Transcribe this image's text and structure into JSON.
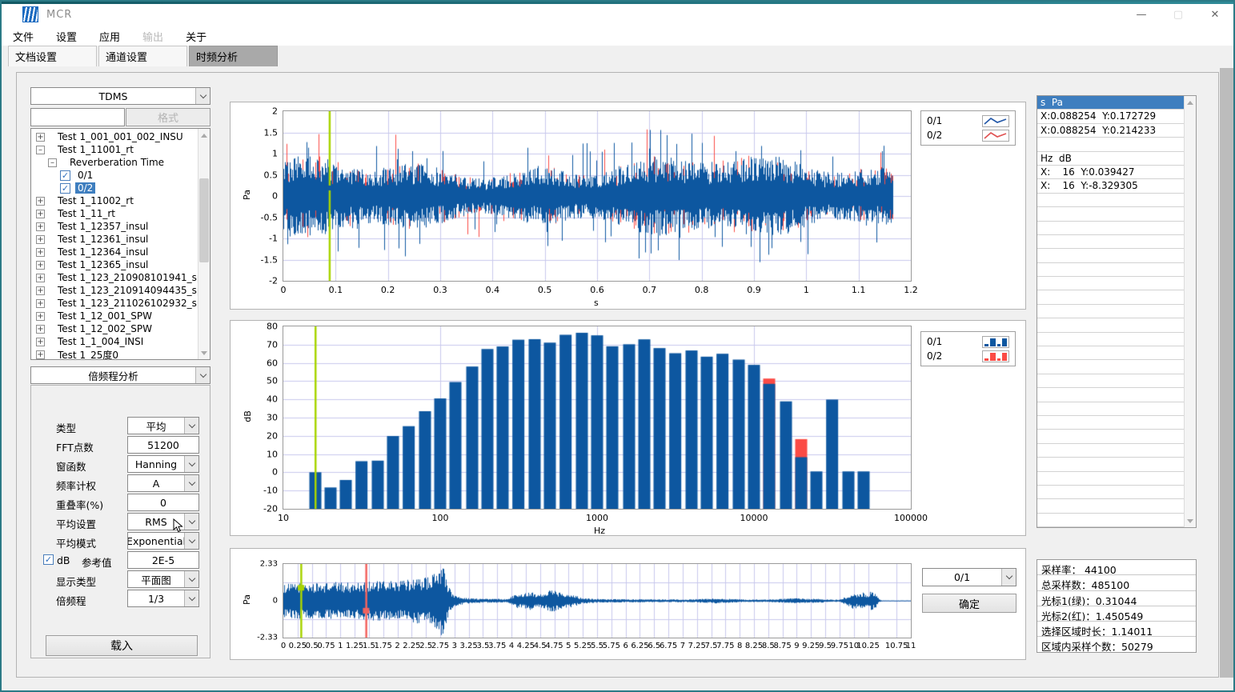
{
  "window": {
    "title": "MCR",
    "buttons": {
      "minimize": "—",
      "maximize": "▢",
      "close": "✕"
    }
  },
  "menu": {
    "items": [
      {
        "id": "file",
        "label": "文件",
        "enabled": true
      },
      {
        "id": "settings",
        "label": "设置",
        "enabled": true
      },
      {
        "id": "application",
        "label": "应用",
        "enabled": true
      },
      {
        "id": "output",
        "label": "输出",
        "enabled": false
      },
      {
        "id": "about",
        "label": "关于",
        "enabled": true
      }
    ]
  },
  "tabs": [
    {
      "id": "document-settings",
      "label": "文档设置",
      "active": false
    },
    {
      "id": "channel-settings",
      "label": "通道设置",
      "active": false
    },
    {
      "id": "time-frequency",
      "label": "时频分析",
      "active": true
    }
  ],
  "file_panel": {
    "format_select": "TDMS",
    "filter_input": "",
    "format_button": "格式",
    "tree": [
      {
        "label": "Test 1_001_001_002_INSU",
        "level": 0,
        "expander": "+"
      },
      {
        "label": "Test 1_11001_rt",
        "level": 0,
        "expander": "-"
      },
      {
        "label": "Reverberation Time",
        "level": 1,
        "expander": "-"
      },
      {
        "label": "0/1",
        "level": 2,
        "checkbox": true,
        "checked": true
      },
      {
        "label": "0/2",
        "level": 2,
        "checkbox": true,
        "checked": true,
        "selected": true
      },
      {
        "label": "Test 1_11002_rt",
        "level": 0,
        "expander": "+"
      },
      {
        "label": "Test 1_11_rt",
        "level": 0,
        "expander": "+"
      },
      {
        "label": "Test 1_12357_insul",
        "level": 0,
        "expander": "+"
      },
      {
        "label": "Test 1_12361_insul",
        "level": 0,
        "expander": "+"
      },
      {
        "label": "Test 1_12364_insul",
        "level": 0,
        "expander": "+"
      },
      {
        "label": "Test 1_12365_insul",
        "level": 0,
        "expander": "+"
      },
      {
        "label": "Test 1_123_210908101941_spw",
        "level": 0,
        "expander": "+"
      },
      {
        "label": "Test 1_123_210914094435_spw",
        "level": 0,
        "expander": "+"
      },
      {
        "label": "Test 1_123_211026102932_spw",
        "level": 0,
        "expander": "+"
      },
      {
        "label": "Test 1_12_001_SPW",
        "level": 0,
        "expander": "+"
      },
      {
        "label": "Test 1_12_002_SPW",
        "level": 0,
        "expander": "+"
      },
      {
        "label": "Test 1_1_004_INSI",
        "level": 0,
        "expander": "+"
      },
      {
        "label": "Test 1_25度0",
        "level": 0,
        "expander": "+"
      }
    ]
  },
  "analysis_panel": {
    "title_select": "倍频程分析",
    "fields": [
      {
        "id": "type",
        "label": "类型",
        "type": "select",
        "value": "平均"
      },
      {
        "id": "fft-points",
        "label": "FFT点数",
        "type": "input",
        "value": "51200"
      },
      {
        "id": "window-function",
        "label": "窗函数",
        "type": "select",
        "value": "Hanning"
      },
      {
        "id": "frequency-weighting",
        "label": "频率计权",
        "type": "select",
        "value": "A"
      },
      {
        "id": "overlap",
        "label": "重叠率(%)",
        "type": "input",
        "value": "0"
      },
      {
        "id": "average-setting",
        "label": "平均设置",
        "type": "select",
        "value": "RMS"
      },
      {
        "id": "average-mode",
        "label": "平均模式",
        "type": "select",
        "value": "Exponential"
      },
      {
        "id": "db-reference",
        "label": "参考值",
        "type": "db_ref",
        "checkbox_label": "dB",
        "checked": true,
        "value": "2E-5"
      },
      {
        "id": "display-type",
        "label": "显示类型",
        "type": "select",
        "value": "平面图"
      },
      {
        "id": "octave",
        "label": "倍频程",
        "type": "select",
        "value": "1/3"
      }
    ],
    "load_button": "载入"
  },
  "readout_panel": {
    "rows": [
      "s  Pa",
      "X:0.088254  Y:0.172729",
      "X:0.088254  Y:0.214233",
      "",
      "Hz  dB",
      "X:    16  Y:0.039427",
      "X:    16  Y:-8.329305"
    ]
  },
  "stats_panel": {
    "rows": [
      "采样率： 44100",
      "总采样数：485100",
      "光标1(绿)：0.31044",
      "光标2(红)：1.450549",
      "选择区域时长：1.14011",
      "区域内采样个数：50279"
    ]
  },
  "overview_controls": {
    "channel_select": "0/1",
    "confirm_button": "确定"
  },
  "colors": {
    "signal_blue": "#0d57a0",
    "signal_red": "#fb4b45",
    "legend_red_line": "#e05353",
    "cursor_green": "#a8d400",
    "cursor_red": "#f2635f",
    "grid": "#c9c9ec",
    "selected_row": "#3e7ebf",
    "frame_teal": "#2b7a86"
  },
  "chart_data": [
    {
      "id": "time",
      "type": "line",
      "title": "",
      "xlabel": "s",
      "ylabel": "Pa",
      "xlim": [
        0,
        1.2
      ],
      "ylim": [
        -2,
        2
      ],
      "xticks": [
        0,
        0.1,
        0.2,
        0.3,
        0.4,
        0.5,
        0.6,
        0.7,
        0.8,
        0.9,
        1,
        1.1,
        1.2
      ],
      "yticks": [
        2,
        1.5,
        1,
        0.5,
        0,
        -0.5,
        -1,
        -1.5,
        -2
      ],
      "grid": true,
      "series": [
        {
          "name": "0/1",
          "color": "#0d57a0",
          "description": "broadband noise, duration 1.165 s, typical amplitude ±0.9 Pa, peaks ±1.55 Pa"
        },
        {
          "name": "0/2",
          "color": "#e05353",
          "description": "second channel, mostly hidden behind 0/1"
        }
      ],
      "cursors": [
        {
          "x": 0.088254,
          "color": "#a8d400"
        }
      ],
      "legend": [
        {
          "label": "0/1",
          "glyph": "line",
          "color": "#2458a8"
        },
        {
          "label": "0/2",
          "glyph": "line",
          "color": "#e05353"
        }
      ],
      "legend_position": "top-right"
    },
    {
      "id": "spectrum",
      "type": "bar",
      "title": "",
      "xlabel": "Hz",
      "ylabel": "dB",
      "xscale": "log",
      "xlim": [
        10,
        100000
      ],
      "ylim": [
        -20,
        80
      ],
      "xticks": [
        10,
        100,
        1000,
        10000,
        100000
      ],
      "yticks": [
        80,
        70,
        60,
        50,
        40,
        30,
        20,
        10,
        0,
        -10,
        -20
      ],
      "grid": true,
      "categories": [
        16,
        20,
        25,
        31.5,
        40,
        50,
        63,
        80,
        100,
        125,
        160,
        200,
        250,
        315,
        400,
        500,
        630,
        800,
        1000,
        1250,
        1600,
        2000,
        2500,
        3150,
        4000,
        5000,
        6300,
        8000,
        10000,
        12500,
        16000,
        20000,
        25000,
        31500,
        40000,
        50000
      ],
      "series": [
        {
          "name": "0/1",
          "color": "#0d57a0",
          "values": [
            0.04,
            -8.3,
            -4.2,
            6.1,
            6.4,
            19.9,
            25.3,
            33.5,
            40.5,
            49.5,
            58,
            67.6,
            69,
            72.7,
            73,
            71.1,
            75.4,
            76.5,
            75.1,
            69.1,
            70.2,
            72.9,
            68.1,
            65.3,
            66.8,
            63.4,
            65,
            61.8,
            58.9,
            48.5,
            38.9,
            8.3,
            0.5,
            39.9,
            0.5,
            0.5
          ]
        },
        {
          "name": "0/2",
          "color": "#fb4b45",
          "values": [
            -8.33,
            null,
            null,
            null,
            null,
            null,
            null,
            null,
            null,
            null,
            null,
            null,
            null,
            null,
            null,
            null,
            null,
            null,
            null,
            null,
            null,
            null,
            null,
            null,
            null,
            null,
            null,
            null,
            null,
            51.4,
            null,
            18.2,
            null,
            null,
            null,
            null
          ]
        }
      ],
      "cursors": [
        {
          "x": 16,
          "color": "#a8d400"
        }
      ],
      "legend": [
        {
          "label": "0/1",
          "glyph": "bars",
          "color": "#0d57a0"
        },
        {
          "label": "0/2",
          "glyph": "bars",
          "color": "#fb4b45"
        }
      ],
      "legend_position": "top-right"
    },
    {
      "id": "overview",
      "type": "line",
      "title": "",
      "xlabel": "",
      "ylabel": "Pa",
      "xlim": [
        0,
        11
      ],
      "ylim": [
        -2.33,
        2.33
      ],
      "yticks": [
        2.33,
        0,
        -2.33
      ],
      "xticks": [
        0,
        0.25,
        0.5,
        0.75,
        1,
        1.25,
        1.5,
        1.75,
        2,
        2.25,
        2.5,
        2.75,
        3,
        3.25,
        3.5,
        3.75,
        4,
        4.25,
        4.5,
        4.75,
        5,
        5.25,
        5.5,
        5.75,
        6,
        6.25,
        6.5,
        6.75,
        7,
        7.25,
        7.5,
        7.75,
        8,
        8.25,
        8.5,
        8.75,
        9,
        9.25,
        9.5,
        9.75,
        10,
        10.25,
        10.75,
        11
      ],
      "grid": true,
      "series": [
        {
          "name": "0/1",
          "color": "#0d57a0"
        }
      ],
      "envelope": [
        [
          0,
          1.05
        ],
        [
          0.3,
          1.15
        ],
        [
          0.6,
          1.1
        ],
        [
          0.9,
          1.2
        ],
        [
          1.2,
          1.15
        ],
        [
          1.5,
          1.25
        ],
        [
          1.8,
          1.25
        ],
        [
          2.1,
          1.3
        ],
        [
          2.3,
          1.45
        ],
        [
          2.5,
          1.5
        ],
        [
          2.65,
          1.75
        ],
        [
          2.75,
          2.33
        ],
        [
          2.82,
          2.1
        ],
        [
          2.88,
          1.0
        ],
        [
          2.95,
          0.5
        ],
        [
          3.05,
          0.3
        ],
        [
          3.2,
          0.18
        ],
        [
          3.5,
          0.13
        ],
        [
          3.9,
          0.12
        ],
        [
          4.0,
          0.3
        ],
        [
          4.1,
          0.5
        ],
        [
          4.2,
          0.4
        ],
        [
          4.3,
          0.65
        ],
        [
          4.45,
          0.45
        ],
        [
          4.6,
          0.55
        ],
        [
          4.7,
          0.75
        ],
        [
          4.8,
          0.6
        ],
        [
          4.95,
          0.5
        ],
        [
          5.1,
          0.35
        ],
        [
          5.25,
          0.18
        ],
        [
          5.5,
          0.12
        ],
        [
          6.0,
          0.1
        ],
        [
          6.6,
          0.09
        ],
        [
          7.1,
          0.09
        ],
        [
          7.45,
          0.14
        ],
        [
          7.6,
          0.17
        ],
        [
          7.8,
          0.13
        ],
        [
          8.1,
          0.08
        ],
        [
          8.5,
          0.08
        ],
        [
          8.8,
          0.14
        ],
        [
          9.0,
          0.16
        ],
        [
          9.2,
          0.12
        ],
        [
          9.35,
          0.14
        ],
        [
          9.55,
          0.08
        ],
        [
          9.75,
          0.07
        ],
        [
          9.9,
          0.35
        ],
        [
          10.0,
          0.55
        ],
        [
          10.08,
          0.35
        ],
        [
          10.15,
          0.55
        ],
        [
          10.22,
          0.4
        ],
        [
          10.3,
          0.65
        ],
        [
          10.38,
          0.45
        ],
        [
          10.44,
          0.1
        ],
        [
          10.5,
          0.03
        ],
        [
          11,
          0.02
        ]
      ],
      "cursors": [
        {
          "name": "光标1",
          "x": 0.31044,
          "color": "#a8d400"
        },
        {
          "name": "光标2",
          "x": 1.450549,
          "color": "#f2635f"
        }
      ]
    }
  ]
}
